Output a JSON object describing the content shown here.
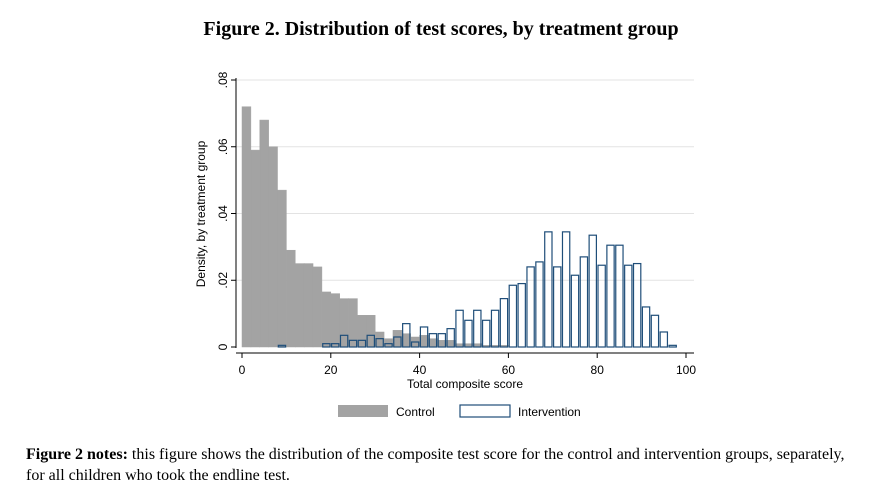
{
  "figure": {
    "title": "Figure 2. Distribution of test scores, by treatment group",
    "notes_label": "Figure 2 notes:",
    "notes_text": " this figure shows the distribution of the composite test score for the control and intervention groups, separately, for all children who took the endline test."
  },
  "chart_data": {
    "type": "bar",
    "subtype": "overlaid-histogram",
    "title": "",
    "xlabel": "Total composite score",
    "ylabel": "Density, by treatment group",
    "xlim": [
      0,
      100
    ],
    "ylim": [
      0,
      0.08
    ],
    "x_ticks": [
      0,
      20,
      40,
      60,
      80,
      100
    ],
    "x_tick_labels": [
      "0",
      "20",
      "40",
      "60",
      "80",
      "100"
    ],
    "y_ticks": [
      0,
      0.02,
      0.04,
      0.06,
      0.08
    ],
    "y_tick_labels": [
      "0",
      ".02",
      ".04",
      ".06",
      ".08"
    ],
    "grid": true,
    "legend_position": "bottom",
    "bin_width": 2,
    "series": [
      {
        "name": "Control",
        "color": "#a3a3a3",
        "style": "filled",
        "bins": [
          {
            "x0": 0,
            "density": 0.072
          },
          {
            "x0": 2,
            "density": 0.059
          },
          {
            "x0": 4,
            "density": 0.068
          },
          {
            "x0": 6,
            "density": 0.06
          },
          {
            "x0": 8,
            "density": 0.047
          },
          {
            "x0": 10,
            "density": 0.029
          },
          {
            "x0": 12,
            "density": 0.025
          },
          {
            "x0": 14,
            "density": 0.025
          },
          {
            "x0": 16,
            "density": 0.024
          },
          {
            "x0": 18,
            "density": 0.0165
          },
          {
            "x0": 20,
            "density": 0.016
          },
          {
            "x0": 22,
            "density": 0.0145
          },
          {
            "x0": 24,
            "density": 0.0145
          },
          {
            "x0": 26,
            "density": 0.0095
          },
          {
            "x0": 28,
            "density": 0.0095
          },
          {
            "x0": 30,
            "density": 0.0045
          },
          {
            "x0": 32,
            "density": 0.0025
          },
          {
            "x0": 34,
            "density": 0.005
          },
          {
            "x0": 36,
            "density": 0.004
          },
          {
            "x0": 38,
            "density": 0.003
          },
          {
            "x0": 40,
            "density": 0.0035
          },
          {
            "x0": 42,
            "density": 0.0025
          },
          {
            "x0": 44,
            "density": 0.002
          },
          {
            "x0": 46,
            "density": 0.002
          },
          {
            "x0": 48,
            "density": 0.001
          },
          {
            "x0": 50,
            "density": 0.001
          },
          {
            "x0": 52,
            "density": 0.001
          },
          {
            "x0": 54,
            "density": 0.0005
          },
          {
            "x0": 56,
            "density": 0.0005
          },
          {
            "x0": 58,
            "density": 0.0005
          }
        ]
      },
      {
        "name": "Intervention",
        "color": "#1f4e79",
        "style": "outline",
        "bins": [
          {
            "x0": 8,
            "density": 0.0005
          },
          {
            "x0": 18,
            "density": 0.001
          },
          {
            "x0": 20,
            "density": 0.001
          },
          {
            "x0": 22,
            "density": 0.0035
          },
          {
            "x0": 24,
            "density": 0.002
          },
          {
            "x0": 26,
            "density": 0.002
          },
          {
            "x0": 28,
            "density": 0.0035
          },
          {
            "x0": 30,
            "density": 0.0025
          },
          {
            "x0": 32,
            "density": 0.001
          },
          {
            "x0": 34,
            "density": 0.003
          },
          {
            "x0": 36,
            "density": 0.007
          },
          {
            "x0": 38,
            "density": 0.0015
          },
          {
            "x0": 40,
            "density": 0.006
          },
          {
            "x0": 42,
            "density": 0.004
          },
          {
            "x0": 44,
            "density": 0.004
          },
          {
            "x0": 46,
            "density": 0.0055
          },
          {
            "x0": 48,
            "density": 0.011
          },
          {
            "x0": 50,
            "density": 0.008
          },
          {
            "x0": 52,
            "density": 0.011
          },
          {
            "x0": 54,
            "density": 0.008
          },
          {
            "x0": 56,
            "density": 0.011
          },
          {
            "x0": 58,
            "density": 0.0145
          },
          {
            "x0": 60,
            "density": 0.0185
          },
          {
            "x0": 62,
            "density": 0.019
          },
          {
            "x0": 64,
            "density": 0.024
          },
          {
            "x0": 66,
            "density": 0.0255
          },
          {
            "x0": 68,
            "density": 0.0345
          },
          {
            "x0": 70,
            "density": 0.024
          },
          {
            "x0": 72,
            "density": 0.0345
          },
          {
            "x0": 74,
            "density": 0.0215
          },
          {
            "x0": 76,
            "density": 0.027
          },
          {
            "x0": 78,
            "density": 0.0335
          },
          {
            "x0": 80,
            "density": 0.0245
          },
          {
            "x0": 82,
            "density": 0.0305
          },
          {
            "x0": 84,
            "density": 0.0305
          },
          {
            "x0": 86,
            "density": 0.0245
          },
          {
            "x0": 88,
            "density": 0.025
          },
          {
            "x0": 90,
            "density": 0.012
          },
          {
            "x0": 92,
            "density": 0.0095
          },
          {
            "x0": 94,
            "density": 0.0045
          },
          {
            "x0": 96,
            "density": 0.0005
          }
        ]
      }
    ]
  }
}
